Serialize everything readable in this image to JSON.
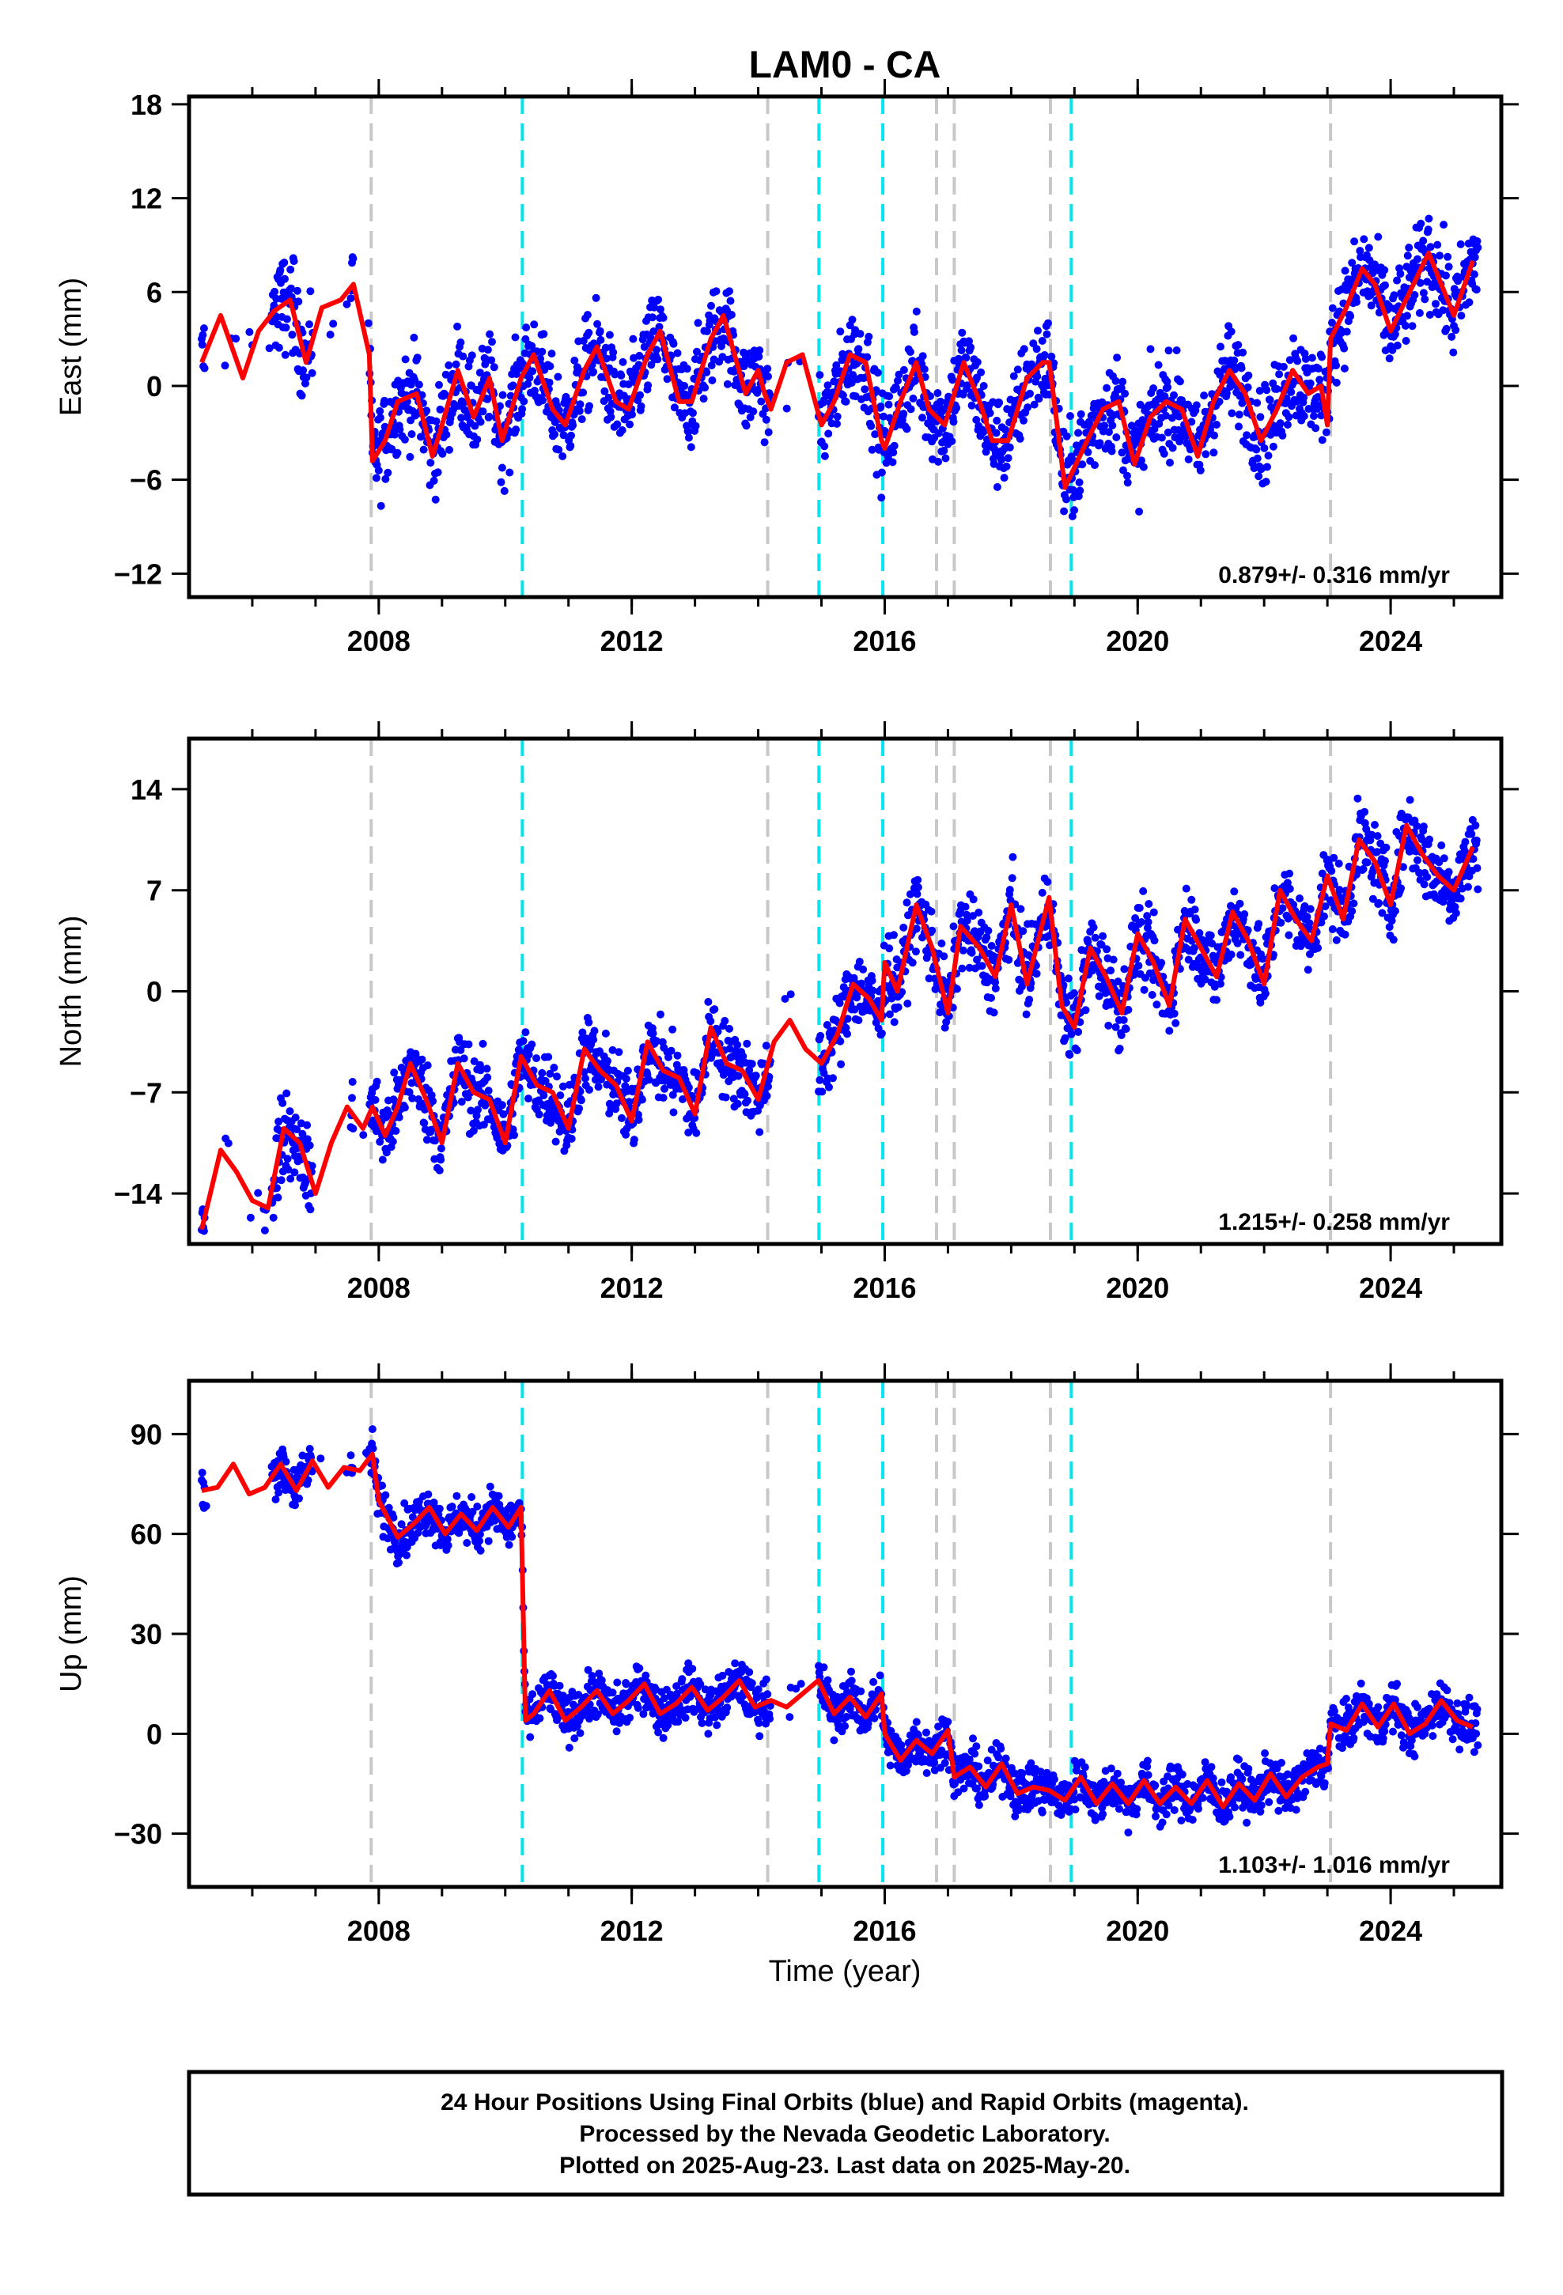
{
  "title": "LAM0 - CA",
  "xlabel": "Time (year)",
  "caption": {
    "line1": "24 Hour Positions Using Final Orbits (blue) and Rapid Orbits (magenta).",
    "line2": "Processed by the Nevada Geodetic Laboratory.",
    "line3": "Plotted on 2025-Aug-23. Last data on 2025-May-20."
  },
  "colors": {
    "points": "#0000ff",
    "model": "#ff0000",
    "equipment_change": "#c8c8c8",
    "earthquake": "#00e5ee"
  },
  "chart_data": [
    {
      "type": "scatter",
      "component": "east",
      "ylabel": "East (mm)",
      "xlim": [
        2005.0,
        2025.75
      ],
      "ylim": [
        -13.5,
        18.5
      ],
      "xticks": [
        2008,
        2012,
        2016,
        2020,
        2024
      ],
      "yticks": [
        -12,
        -6,
        0,
        6,
        12,
        18
      ],
      "ytick_labels": [
        "−12",
        "−6",
        "0",
        "6",
        "12",
        "18"
      ],
      "rate": "0.879+/- 0.316 mm/yr",
      "grid": false,
      "model_x": [
        2005.2,
        2005.5,
        2005.85,
        2006.1,
        2006.35,
        2006.6,
        2006.85,
        2007.1,
        2007.4,
        2007.6,
        2007.85,
        2007.9,
        2008.1,
        2008.3,
        2008.6,
        2008.85,
        2009.0,
        2009.25,
        2009.5,
        2009.75,
        2009.95,
        2010.25,
        2010.45,
        2010.75,
        2010.95,
        2011.25,
        2011.45,
        2011.75,
        2011.95,
        2012.25,
        2012.45,
        2012.75,
        2012.95,
        2013.25,
        2013.45,
        2013.8,
        2014.0,
        2014.1,
        2014.2,
        2014.45,
        2014.7,
        2015.0,
        2015.2,
        2015.45,
        2015.7,
        2015.95,
        2016.0,
        2016.25,
        2016.5,
        2016.7,
        2016.95,
        2017.25,
        2017.5,
        2017.7,
        2017.95,
        2018.25,
        2018.5,
        2018.6,
        2018.65,
        2018.85,
        2019.2,
        2019.45,
        2019.7,
        2019.95,
        2020.2,
        2020.45,
        2020.7,
        2020.95,
        2021.2,
        2021.45,
        2021.7,
        2021.95,
        2022.2,
        2022.45,
        2022.7,
        2022.9,
        2023.0,
        2023.05,
        2023.3,
        2023.55,
        2023.75,
        2024.0,
        2024.3,
        2024.6,
        2024.75,
        2025.0,
        2025.3
      ],
      "model_y": [
        1.5,
        4.5,
        0.5,
        3.5,
        4.8,
        5.5,
        1.5,
        5,
        5.5,
        6.5,
        2,
        -4.8,
        -3.5,
        -1,
        -0.5,
        -4.5,
        -2.5,
        1,
        -2,
        0.5,
        -3.5,
        0.5,
        2,
        -1.5,
        -2.5,
        1,
        2.5,
        -1,
        -1.5,
        2,
        3.5,
        -1,
        -1,
        3,
        4.5,
        -0.5,
        1,
        -0.5,
        -1.5,
        1.5,
        2,
        -2.5,
        -1,
        2,
        1.5,
        -3.5,
        -4,
        -1,
        1.5,
        -1.5,
        -2.5,
        1.5,
        -1,
        -3.5,
        -3.5,
        0.5,
        1.5,
        1.5,
        0,
        -6.5,
        -3.5,
        -1.5,
        -1,
        -5,
        -2,
        -1,
        -1.5,
        -4.5,
        -1,
        1,
        -0.5,
        -3.5,
        -1.5,
        1,
        -0.5,
        0,
        -2.5,
        3,
        5,
        7.5,
        6.5,
        3.5,
        6,
        8.5,
        7,
        4.5,
        8
      ]
    },
    {
      "type": "scatter",
      "component": "north",
      "ylabel": "North (mm)",
      "xlim": [
        2005.0,
        2025.75
      ],
      "ylim": [
        -17.5,
        17.5
      ],
      "xticks": [
        2008,
        2012,
        2016,
        2020,
        2024
      ],
      "yticks": [
        -14,
        -7,
        0,
        7,
        14
      ],
      "ytick_labels": [
        "−14",
        "−7",
        "0",
        "7",
        "14"
      ],
      "rate": "1.215+/- 0.258 mm/yr",
      "grid": false,
      "model_x": [
        2005.2,
        2005.5,
        2005.75,
        2006.0,
        2006.25,
        2006.5,
        2006.75,
        2007.0,
        2007.25,
        2007.5,
        2007.75,
        2007.9,
        2008.1,
        2008.3,
        2008.5,
        2008.75,
        2009.0,
        2009.25,
        2009.5,
        2009.75,
        2010.0,
        2010.25,
        2010.5,
        2010.75,
        2011.0,
        2011.25,
        2011.5,
        2011.75,
        2012.0,
        2012.25,
        2012.5,
        2012.75,
        2013.0,
        2013.25,
        2013.5,
        2013.75,
        2014.0,
        2014.25,
        2014.5,
        2014.75,
        2015.0,
        2015.25,
        2015.5,
        2015.75,
        2015.95,
        2016.0,
        2016.2,
        2016.5,
        2016.75,
        2017.0,
        2017.2,
        2017.5,
        2017.75,
        2018.0,
        2018.25,
        2018.6,
        2018.8,
        2019.0,
        2019.25,
        2019.5,
        2019.75,
        2020.0,
        2020.25,
        2020.5,
        2020.75,
        2021.0,
        2021.25,
        2021.5,
        2021.75,
        2022.0,
        2022.25,
        2022.5,
        2022.75,
        2023.0,
        2023.25,
        2023.5,
        2023.75,
        2024.0,
        2024.25,
        2024.5,
        2024.75,
        2025.0,
        2025.3
      ],
      "model_y": [
        -16.5,
        -11,
        -12.5,
        -14.5,
        -15,
        -9.5,
        -10.5,
        -14,
        -10.5,
        -8,
        -9.5,
        -8,
        -10,
        -8,
        -5,
        -7.5,
        -10.5,
        -5,
        -7,
        -7.5,
        -10.5,
        -4.5,
        -6.5,
        -7,
        -9.5,
        -4,
        -5.5,
        -6.5,
        -9,
        -3.5,
        -5.5,
        -6,
        -8.5,
        -2.5,
        -5,
        -5.5,
        -7.5,
        -3.5,
        -2,
        -4,
        -5,
        -3,
        0.5,
        -0.5,
        -2,
        2,
        0,
        6,
        3,
        -1.5,
        4.5,
        3,
        1,
        6,
        0.5,
        6.5,
        -1,
        -2.5,
        3,
        1,
        -1.5,
        4,
        2,
        -1,
        5,
        3,
        1,
        5.5,
        3.5,
        0.5,
        7,
        5,
        3.5,
        8,
        5,
        10.5,
        9,
        6,
        11.5,
        9.5,
        8,
        7,
        10
      ]
    },
    {
      "type": "scatter",
      "component": "up",
      "ylabel": "Up (mm)",
      "xlim": [
        2005.0,
        2025.75
      ],
      "ylim": [
        -46,
        106
      ],
      "xticks": [
        2008,
        2012,
        2016,
        2020,
        2024
      ],
      "yticks": [
        -30,
        0,
        30,
        60,
        90
      ],
      "ytick_labels": [
        "−30",
        "0",
        "30",
        "60",
        "90"
      ],
      "rate": "1.103+/- 1.016 mm/yr",
      "grid": false,
      "model_x": [
        2005.2,
        2005.45,
        2005.7,
        2005.95,
        2006.2,
        2006.45,
        2006.7,
        2006.95,
        2007.2,
        2007.45,
        2007.7,
        2007.9,
        2008.0,
        2008.3,
        2008.55,
        2008.8,
        2009.05,
        2009.3,
        2009.55,
        2009.8,
        2010.05,
        2010.25,
        2010.32,
        2010.45,
        2010.7,
        2010.95,
        2011.2,
        2011.45,
        2011.7,
        2011.95,
        2012.2,
        2012.45,
        2012.7,
        2012.95,
        2013.2,
        2013.45,
        2013.7,
        2013.95,
        2014.2,
        2014.45,
        2014.7,
        2014.95,
        2015.2,
        2015.45,
        2015.7,
        2015.95,
        2016.0,
        2016.25,
        2016.5,
        2016.75,
        2017.0,
        2017.1,
        2017.35,
        2017.6,
        2017.85,
        2018.1,
        2018.35,
        2018.6,
        2018.85,
        2019.1,
        2019.35,
        2019.6,
        2019.85,
        2020.1,
        2020.35,
        2020.6,
        2020.85,
        2021.1,
        2021.35,
        2021.6,
        2021.85,
        2022.1,
        2022.35,
        2022.6,
        2022.85,
        2023.0,
        2023.05,
        2023.3,
        2023.55,
        2023.8,
        2024.05,
        2024.3,
        2024.55,
        2024.8,
        2025.05,
        2025.3
      ],
      "model_y": [
        73,
        74,
        81,
        72,
        74,
        81,
        73,
        82,
        74,
        80,
        79,
        84,
        70,
        59,
        63,
        68,
        60,
        66,
        61,
        68,
        62,
        68,
        4,
        6,
        13,
        4,
        8,
        13,
        6,
        10,
        15,
        6,
        9,
        14,
        7,
        11,
        16,
        8,
        10,
        8,
        12,
        16,
        6,
        11,
        5,
        12,
        0,
        -8,
        -2,
        -6,
        1,
        -13,
        -10,
        -16,
        -9,
        -18,
        -16,
        -17,
        -20,
        -13,
        -21,
        -15,
        -21,
        -14,
        -21,
        -16,
        -21,
        -14,
        -22,
        -15,
        -20,
        -12,
        -19,
        -13,
        -10,
        -9,
        3,
        1,
        9,
        2,
        9,
        0,
        3,
        10,
        4,
        2
      ]
    }
  ],
  "event_lines": {
    "equipment": [
      2007.88,
      2014.15,
      2016.82,
      2017.1,
      2018.62,
      2023.05
    ],
    "earthquake": [
      2010.27,
      2014.96,
      2015.97,
      2018.95
    ]
  }
}
